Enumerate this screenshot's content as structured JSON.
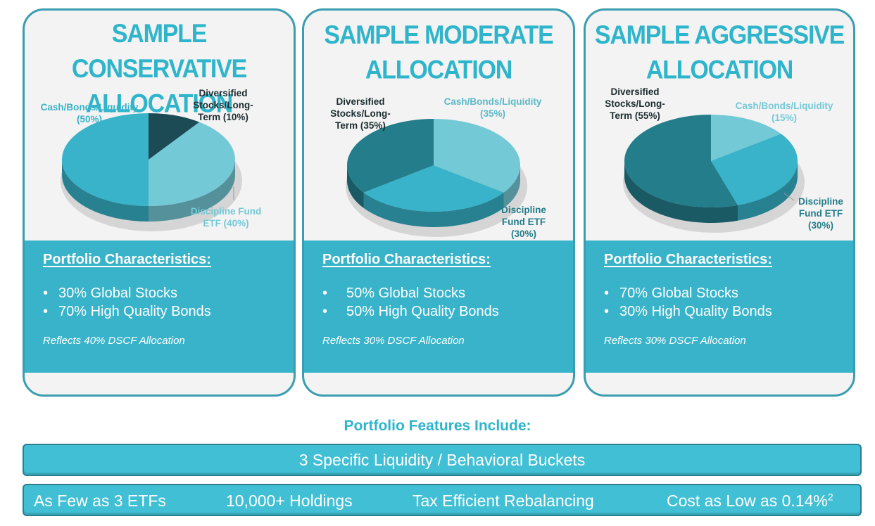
{
  "cards": [
    {
      "title_line1": "SAMPLE CONSERVATIVE",
      "title_line2": "ALLOCATION",
      "characteristics_heading": "Portfolio Characteristics:",
      "bullets": [
        "30% Global Stocks",
        "70% High Quality Bonds"
      ],
      "note": "Reflects 40% DSCF Allocation"
    },
    {
      "title_line1": "SAMPLE MODERATE",
      "title_line2": "ALLOCATION",
      "characteristics_heading": "Portfolio Characteristics:",
      "bullets": [
        "50% Global Stocks",
        "50% High Quality Bonds"
      ],
      "note": "Reflects 30% DSCF Allocation"
    },
    {
      "title_line1": "SAMPLE AGGRESSIVE",
      "title_line2": "ALLOCATION",
      "characteristics_heading": "Portfolio Characteristics:",
      "bullets": [
        "70% Global Stocks",
        "30% High Quality Bonds"
      ],
      "note": "Reflects 30% DSCF Allocation"
    }
  ],
  "chart_data": [
    {
      "type": "pie",
      "title": "SAMPLE CONSERVATIVE ALLOCATION",
      "slices": [
        {
          "label": "Diversified Stocks/Long-Term (10%)",
          "label_lines": [
            "Diversified",
            "Stocks/Long-",
            "Term (10%)"
          ],
          "value": 10,
          "color": "#1c4a55"
        },
        {
          "label": "Discipline Fund ETF (40%)",
          "label_lines": [
            "Discipline Fund",
            "ETF (40%)"
          ],
          "value": 40,
          "color": "#74c9d7"
        },
        {
          "label": "Cash/Bonds/Liquidity (50%)",
          "label_lines": [
            "Cash/Bonds/Liquidity",
            "(50%)"
          ],
          "value": 50,
          "color": "#38b3c9"
        }
      ]
    },
    {
      "type": "pie",
      "title": "SAMPLE MODERATE ALLOCATION",
      "slices": [
        {
          "label": "Cash/Bonds/Liquidity (35%)",
          "label_lines": [
            "Cash/Bonds/Liquidity",
            "(35%)"
          ],
          "value": 35,
          "color": "#74c9d7"
        },
        {
          "label": "Discipline Fund ETF (30%)",
          "label_lines": [
            "Discipline",
            "Fund ETF",
            "(30%)"
          ],
          "value": 30,
          "color": "#38b3c9"
        },
        {
          "label": "Diversified Stocks/Long-Term (35%)",
          "label_lines": [
            "Diversified",
            "Stocks/Long-",
            "Term (35%)"
          ],
          "value": 35,
          "color": "#237d8b"
        }
      ]
    },
    {
      "type": "pie",
      "title": "SAMPLE AGGRESSIVE ALLOCATION",
      "slices": [
        {
          "label": "Cash/Bonds/Liquidity (15%)",
          "label_lines": [
            "Cash/Bonds/Liquidity",
            "(15%)"
          ],
          "value": 15,
          "color": "#74c9d7"
        },
        {
          "label": "Discipline Fund ETF (30%)",
          "label_lines": [
            "Discipline",
            "Fund ETF",
            "(30%)"
          ],
          "value": 30,
          "color": "#38b3c9"
        },
        {
          "label": "Diversified Stocks/Long-Term (55%)",
          "label_lines": [
            "Diversified",
            "Stocks/Long-",
            "Term (55%)"
          ],
          "value": 55,
          "color": "#237d8b"
        }
      ]
    }
  ],
  "features": {
    "heading": "Portfolio Features Include:",
    "bar1": "3 Specific Liquidity / Behavioral Buckets",
    "items": [
      "As Few as 3 ETFs",
      "10,000+ Holdings",
      "Tax Efficient Rebalancing",
      "Cost as Low as 0.14%"
    ],
    "footnote_mark": "2"
  },
  "colors": {
    "accent": "#2fb5cb",
    "panel": "#38b3c9",
    "border": "#3a9db0",
    "dark_slice": "#1c4a55",
    "teal_slice": "#237d8b",
    "light_slice": "#74c9d7"
  }
}
